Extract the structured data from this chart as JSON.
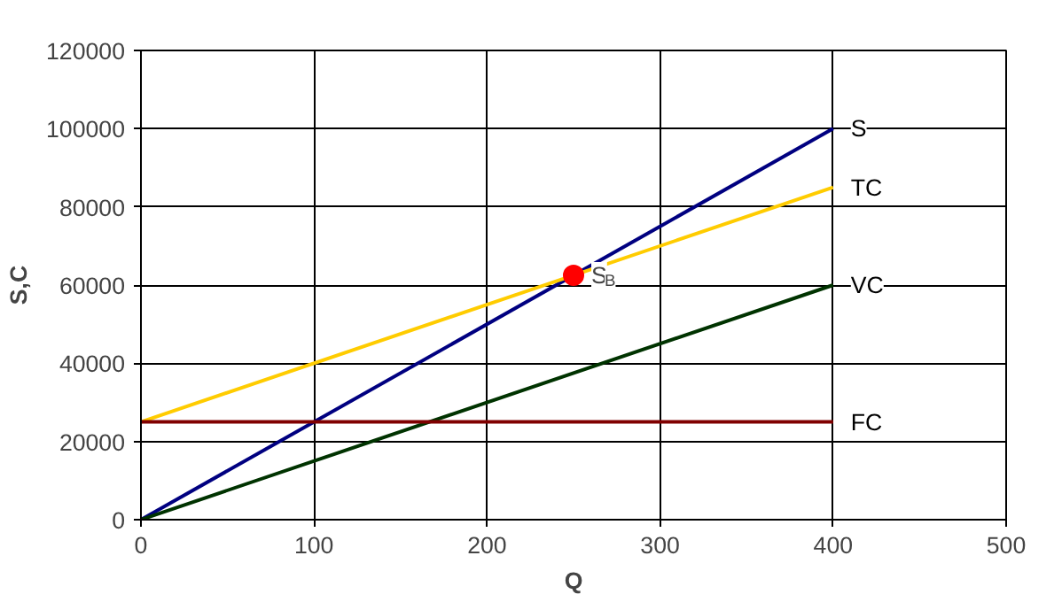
{
  "chart_data": {
    "type": "line",
    "xlabel": "Q",
    "ylabel": "S,C",
    "xlim": [
      0,
      500
    ],
    "xticks": [
      0,
      100,
      200,
      300,
      400,
      500
    ],
    "ylim": [
      0,
      120000
    ],
    "yticks": [
      0,
      20000,
      40000,
      60000,
      80000,
      100000,
      120000
    ],
    "grid": true,
    "series": [
      {
        "name": "S",
        "color": "#000080",
        "x": [
          0,
          400
        ],
        "values": [
          0,
          100000
        ]
      },
      {
        "name": "TC",
        "color": "#ffcc00",
        "x": [
          0,
          400
        ],
        "values": [
          25000,
          85000
        ]
      },
      {
        "name": "VC",
        "color": "#003300",
        "x": [
          0,
          400
        ],
        "values": [
          0,
          60000
        ]
      },
      {
        "name": "FC",
        "color": "#800000",
        "x": [
          0,
          400
        ],
        "values": [
          25000,
          25000
        ]
      },
      {
        "type": "scatter",
        "marker": "circle",
        "color": "#ff0000",
        "x": [
          250
        ],
        "values": [
          62500
        ]
      }
    ],
    "annotations": [
      {
        "text": "S$_{B}$",
        "x": 250,
        "y": 62500
      }
    ]
  }
}
